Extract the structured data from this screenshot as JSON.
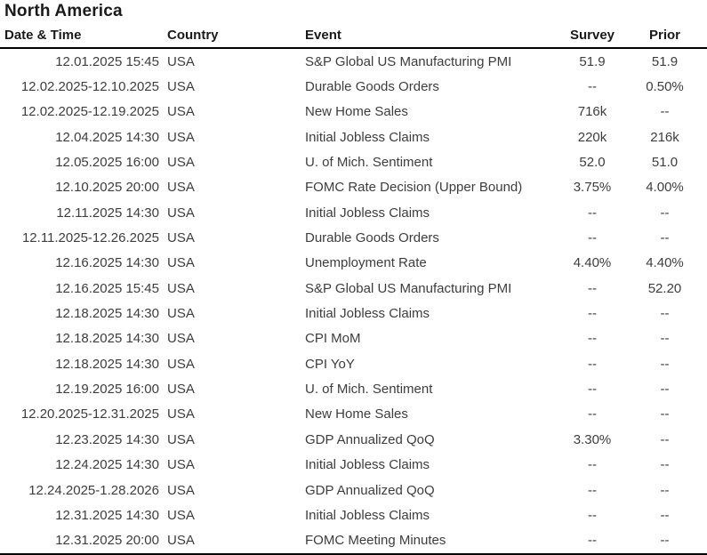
{
  "title": "North America",
  "colors": {
    "background": "#ffffff",
    "title_text": "#1a1a1a",
    "header_text": "#1a1a1a",
    "body_text": "#3d3d3d",
    "rule": "#000000"
  },
  "chart_data": {
    "type": "table",
    "title": "North America",
    "columns": [
      "Date & Time",
      "Country",
      "Event",
      "Survey",
      "Prior"
    ],
    "rows": [
      {
        "datetime": "12.01.2025 15:45",
        "country": "USA",
        "event": "S&P Global US Manufacturing PMI",
        "survey": "51.9",
        "prior": "51.9"
      },
      {
        "datetime": "12.02.2025-12.10.2025",
        "country": "USA",
        "event": "Durable Goods Orders",
        "survey": "--",
        "prior": "0.50%"
      },
      {
        "datetime": "12.02.2025-12.19.2025",
        "country": "USA",
        "event": "New Home Sales",
        "survey": "716k",
        "prior": "--"
      },
      {
        "datetime": "12.04.2025 14:30",
        "country": "USA",
        "event": "Initial Jobless Claims",
        "survey": "220k",
        "prior": "216k"
      },
      {
        "datetime": "12.05.2025 16:00",
        "country": "USA",
        "event": "U. of Mich. Sentiment",
        "survey": "52.0",
        "prior": "51.0"
      },
      {
        "datetime": "12.10.2025 20:00",
        "country": "USA",
        "event": "FOMC Rate Decision (Upper Bound)",
        "survey": "3.75%",
        "prior": "4.00%"
      },
      {
        "datetime": "12.11.2025 14:30",
        "country": "USA",
        "event": "Initial Jobless Claims",
        "survey": "--",
        "prior": "--"
      },
      {
        "datetime": "12.11.2025-12.26.2025",
        "country": "USA",
        "event": "Durable Goods Orders",
        "survey": "--",
        "prior": "--"
      },
      {
        "datetime": "12.16.2025 14:30",
        "country": "USA",
        "event": "Unemployment Rate",
        "survey": "4.40%",
        "prior": "4.40%"
      },
      {
        "datetime": "12.16.2025 15:45",
        "country": "USA",
        "event": "S&P Global US Manufacturing PMI",
        "survey": "--",
        "prior": "52.20"
      },
      {
        "datetime": "12.18.2025 14:30",
        "country": "USA",
        "event": "Initial Jobless Claims",
        "survey": "--",
        "prior": "--"
      },
      {
        "datetime": "12.18.2025 14:30",
        "country": "USA",
        "event": "CPI MoM",
        "survey": "--",
        "prior": "--"
      },
      {
        "datetime": "12.18.2025 14:30",
        "country": "USA",
        "event": "CPI YoY",
        "survey": "--",
        "prior": "--"
      },
      {
        "datetime": "12.19.2025 16:00",
        "country": "USA",
        "event": "U. of Mich. Sentiment",
        "survey": "--",
        "prior": "--"
      },
      {
        "datetime": "12.20.2025-12.31.2025",
        "country": "USA",
        "event": "New Home Sales",
        "survey": "--",
        "prior": "--"
      },
      {
        "datetime": "12.23.2025 14:30",
        "country": "USA",
        "event": "GDP Annualized QoQ",
        "survey": "3.30%",
        "prior": "--"
      },
      {
        "datetime": "12.24.2025 14:30",
        "country": "USA",
        "event": "Initial Jobless Claims",
        "survey": "--",
        "prior": "--"
      },
      {
        "datetime": "12.24.2025-1.28.2026",
        "country": "USA",
        "event": "GDP Annualized QoQ",
        "survey": "--",
        "prior": "--"
      },
      {
        "datetime": "12.31.2025 14:30",
        "country": "USA",
        "event": "Initial Jobless Claims",
        "survey": "--",
        "prior": "--"
      },
      {
        "datetime": "12.31.2025 20:00",
        "country": "USA",
        "event": "FOMC Meeting Minutes",
        "survey": "--",
        "prior": "--"
      }
    ]
  }
}
